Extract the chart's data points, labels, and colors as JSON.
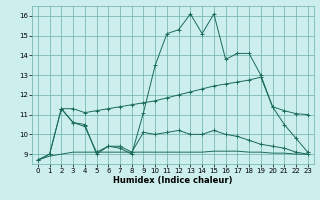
{
  "xlabel": "Humidex (Indice chaleur)",
  "background_color": "#cceeed",
  "grid_color": "#6ab0a8",
  "line_color": "#1a6b5a",
  "xlim": [
    -0.5,
    23.5
  ],
  "ylim": [
    8.5,
    16.5
  ],
  "xticks": [
    0,
    1,
    2,
    3,
    4,
    5,
    6,
    7,
    8,
    9,
    10,
    11,
    12,
    13,
    14,
    15,
    16,
    17,
    18,
    19,
    20,
    21,
    22,
    23
  ],
  "yticks": [
    9,
    10,
    11,
    12,
    13,
    14,
    15,
    16
  ],
  "line1_x": [
    0,
    1,
    2,
    3,
    4,
    5,
    6,
    7,
    8,
    9,
    10,
    11,
    12,
    13,
    14,
    15,
    16,
    17,
    18,
    19,
    20,
    21,
    22,
    23
  ],
  "line1_y": [
    8.7,
    9.0,
    11.3,
    10.6,
    10.5,
    9.0,
    9.4,
    9.3,
    9.0,
    11.1,
    13.5,
    15.1,
    15.3,
    16.1,
    15.1,
    16.1,
    13.8,
    14.1,
    14.1,
    13.0,
    11.4,
    10.5,
    9.8,
    9.1
  ],
  "line2_x": [
    0,
    1,
    2,
    3,
    4,
    5,
    6,
    7,
    8,
    9,
    10,
    11,
    12,
    13,
    14,
    15,
    16,
    17,
    18,
    19,
    20,
    21,
    22,
    23
  ],
  "line2_y": [
    8.7,
    9.0,
    11.3,
    10.6,
    10.4,
    9.1,
    9.4,
    9.4,
    9.1,
    10.1,
    10.0,
    10.1,
    10.2,
    10.0,
    10.0,
    10.2,
    10.0,
    9.9,
    9.7,
    9.5,
    9.4,
    9.3,
    9.1,
    9.0
  ],
  "line3_x": [
    2,
    3,
    4,
    5,
    6,
    7,
    8,
    9,
    10,
    11,
    12,
    13,
    14,
    15,
    16,
    17,
    18,
    19,
    20,
    21,
    22,
    23
  ],
  "line3_y": [
    11.3,
    11.3,
    11.1,
    11.2,
    11.3,
    11.4,
    11.5,
    11.6,
    11.7,
    11.85,
    12.0,
    12.15,
    12.3,
    12.45,
    12.55,
    12.65,
    12.75,
    12.9,
    11.4,
    11.2,
    11.05,
    11.0
  ],
  "line4_x": [
    0,
    1,
    2,
    3,
    4,
    5,
    6,
    7,
    8,
    9,
    10,
    11,
    12,
    13,
    14,
    15,
    16,
    17,
    18,
    19,
    20,
    21,
    22,
    23
  ],
  "line4_y": [
    8.7,
    8.9,
    9.0,
    9.1,
    9.1,
    9.1,
    9.1,
    9.1,
    9.1,
    9.1,
    9.1,
    9.1,
    9.1,
    9.1,
    9.1,
    9.15,
    9.15,
    9.15,
    9.1,
    9.1,
    9.05,
    9.05,
    9.0,
    9.0
  ]
}
